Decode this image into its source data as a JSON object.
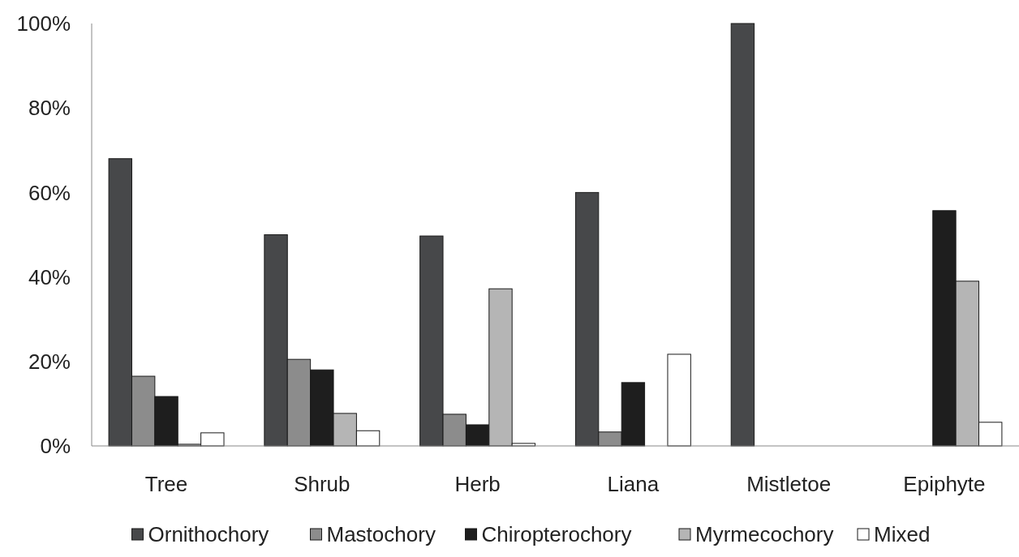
{
  "chart_data": {
    "type": "bar",
    "categories": [
      "Tree",
      "Shrub",
      "Herb",
      "Liana",
      "Mistletoe",
      "Epiphyte"
    ],
    "series": [
      {
        "name": "Ornithochory",
        "color": "#47484a",
        "values": [
          68,
          50,
          49.7,
          60,
          100,
          0
        ]
      },
      {
        "name": "Mastochory",
        "color": "#8c8c8c",
        "values": [
          16.5,
          20.5,
          7.5,
          3.3,
          0,
          0
        ]
      },
      {
        "name": "Chiropterochory",
        "color": "#1e1e1e",
        "values": [
          11.7,
          18,
          5,
          15,
          0,
          55.7
        ]
      },
      {
        "name": "Myrmecochory",
        "color": "#b5b5b5",
        "values": [
          0.4,
          7.7,
          37.2,
          0,
          0,
          39
        ]
      },
      {
        "name": "Mixed",
        "color": "#ffffff",
        "values": [
          3.1,
          3.6,
          0.6,
          21.7,
          0,
          5.6
        ]
      }
    ],
    "ylim": [
      0,
      100
    ],
    "yticks": [
      {
        "value": 0,
        "label": "0%"
      },
      {
        "value": 20,
        "label": "20%"
      },
      {
        "value": 40,
        "label": "40%"
      },
      {
        "value": 60,
        "label": "60%"
      },
      {
        "value": 80,
        "label": "80%"
      },
      {
        "value": 100,
        "label": "100%"
      }
    ],
    "grid": false,
    "legend": "bottom"
  }
}
